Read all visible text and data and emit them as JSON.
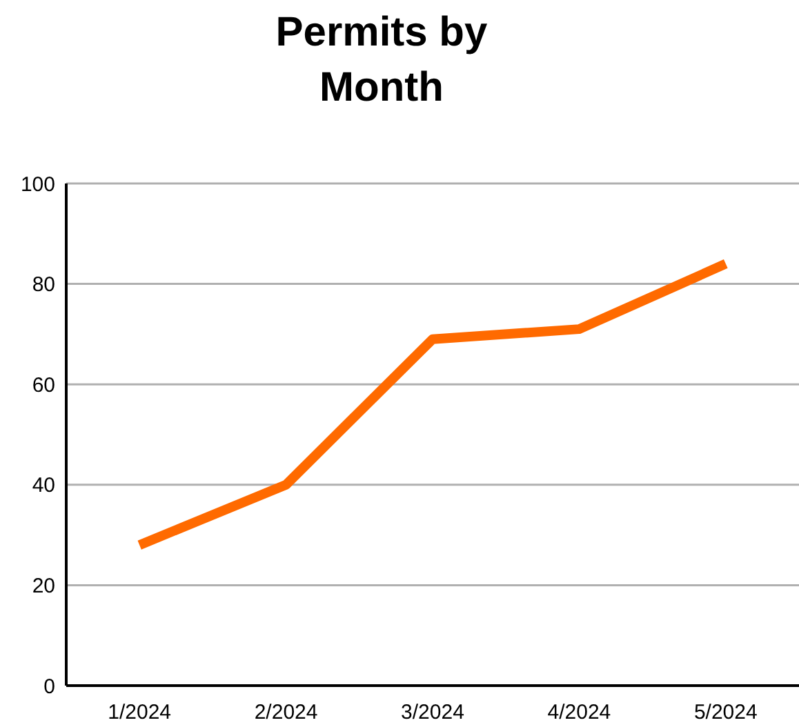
{
  "chart_data": {
    "type": "line",
    "title": "Permits by Month",
    "categories": [
      "1/2024",
      "2/2024",
      "3/2024",
      "4/2024",
      "5/2024"
    ],
    "series": [
      {
        "color": "#ff6a00",
        "values": [
          28,
          40,
          69,
          71,
          84
        ]
      }
    ],
    "ylim": [
      0,
      100
    ],
    "yticks": [
      0,
      20,
      40,
      60,
      80,
      100
    ],
    "grid": "y",
    "marker": "none",
    "line_style": "solid"
  }
}
